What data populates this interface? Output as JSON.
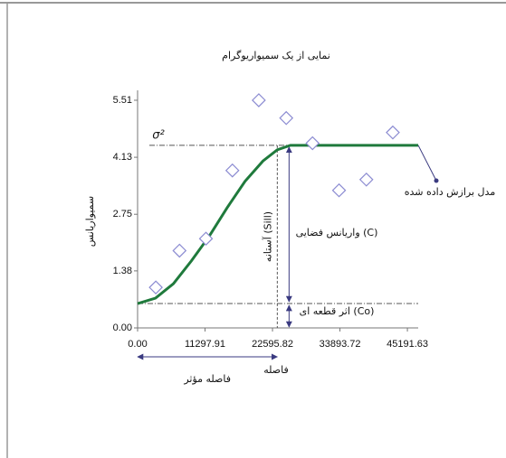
{
  "chart_data": {
    "type": "scatter",
    "title": "نمایی از یک سمیواریوگرام",
    "xlabel": "فاصله",
    "ylabel": "سمیواریانس",
    "xlim": [
      0,
      47000
    ],
    "ylim": [
      0,
      5.75
    ],
    "xticks": [
      {
        "value": 0,
        "label": "0.00"
      },
      {
        "value": 11297.91,
        "label": "11297.91"
      },
      {
        "value": 22595.82,
        "label": "22595.82"
      },
      {
        "value": 33893.72,
        "label": "33893.72"
      },
      {
        "value": 45191.63,
        "label": "45191.63"
      }
    ],
    "yticks": [
      {
        "value": 0,
        "label": "0.00"
      },
      {
        "value": 1.38,
        "label": "1.38"
      },
      {
        "value": 2.75,
        "label": "2.75"
      },
      {
        "value": 4.13,
        "label": "4.13"
      },
      {
        "value": 5.51,
        "label": "5.51"
      }
    ],
    "points": {
      "color": "#8c8cd2",
      "x": [
        3050,
        7020,
        11450,
        15880,
        20300,
        24900,
        29300,
        33740,
        38320,
        42750
      ],
      "values": [
        0.98,
        1.87,
        2.16,
        3.81,
        5.51,
        5.08,
        4.47,
        3.33,
        3.59,
        4.73
      ]
    },
    "model": {
      "name": "مدل برازش داده شده",
      "color": "#1f7a3c",
      "x": [
        0,
        3000,
        6000,
        9000,
        12000,
        15000,
        18000,
        21000,
        23400,
        25600,
        47000
      ],
      "values": [
        0.59,
        0.72,
        1.07,
        1.62,
        2.22,
        2.91,
        3.55,
        4.04,
        4.31,
        4.42,
        4.42
      ]
    },
    "sill": 4.42,
    "nugget": 0.59,
    "range": 23400,
    "annotations": {
      "sigma": "σ²",
      "partial_sill": "واریانس فضایی (C)",
      "sill": "آستانه (Sill)",
      "nugget": "اثر قطعه ای (Co)",
      "range": "فاصله مؤثر"
    }
  }
}
